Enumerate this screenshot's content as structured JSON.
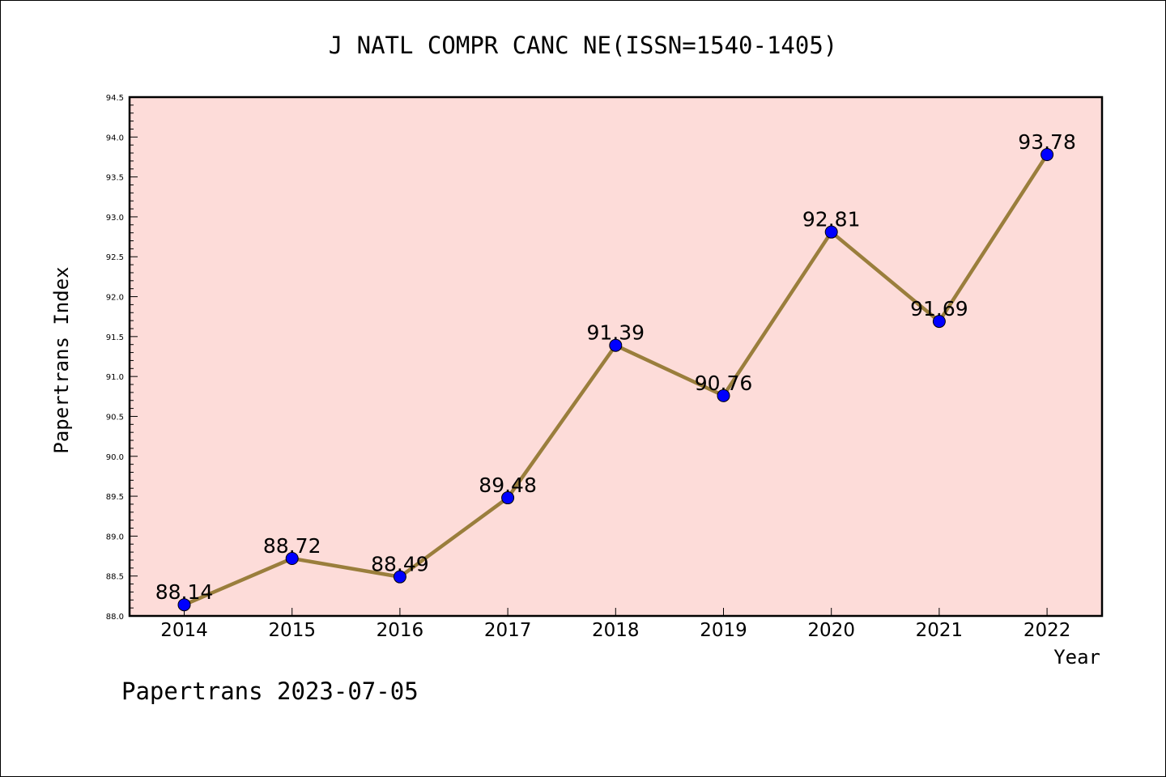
{
  "chart_data": {
    "type": "line",
    "title": "J NATL COMPR CANC NE(ISSN=1540-1405)",
    "xlabel": "Year",
    "ylabel": "Papertrans Index",
    "categories": [
      "2014",
      "2015",
      "2016",
      "2017",
      "2018",
      "2019",
      "2020",
      "2021",
      "2022"
    ],
    "values": [
      88.14,
      88.72,
      88.49,
      89.48,
      91.39,
      90.76,
      92.81,
      91.69,
      93.78
    ],
    "data_labels": [
      "88.14",
      "88.72",
      "88.49",
      "89.48",
      "91.39",
      "90.76",
      "92.81",
      "91.69",
      "93.78"
    ],
    "ylim": [
      88.0,
      94.5
    ],
    "yticks": [
      "88.0",
      "88.5",
      "89.0",
      "89.5",
      "90.0",
      "90.5",
      "91.0",
      "91.5",
      "92.0",
      "92.5",
      "93.0",
      "93.5",
      "94.0",
      "94.5"
    ],
    "grid": false,
    "colors": {
      "plot_background": "#fddcd9",
      "line": "#9a7e3c",
      "marker": "#0000ff"
    }
  },
  "footer": "Papertrans 2023-07-05"
}
